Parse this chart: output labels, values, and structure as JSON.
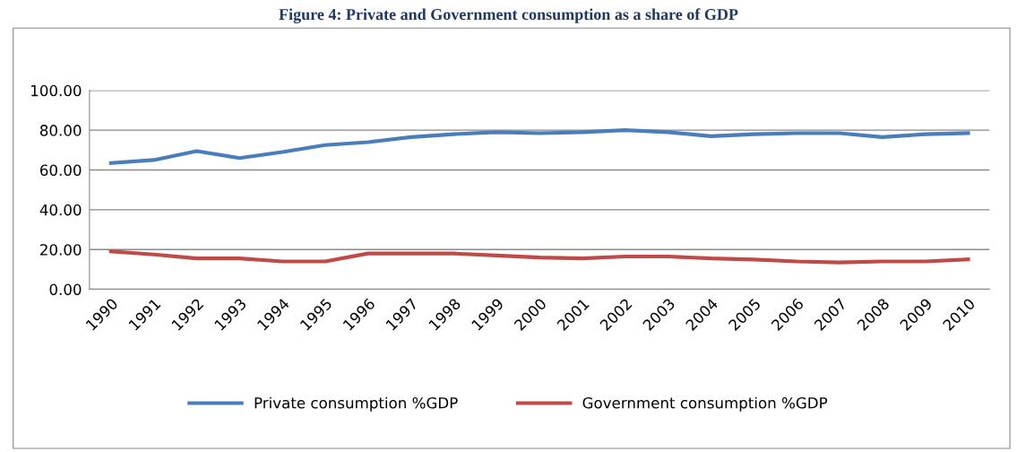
{
  "chart_data": {
    "type": "line",
    "title": "Figure 4: Private and Government consumption as a share of GDP",
    "categories": [
      "1990",
      "1991",
      "1992",
      "1993",
      "1994",
      "1995",
      "1996",
      "1997",
      "1998",
      "1999",
      "2000",
      "2001",
      "2002",
      "2003",
      "2004",
      "2005",
      "2006",
      "2007",
      "2008",
      "2009",
      "2010"
    ],
    "series": [
      {
        "name": "Private consumption %GDP",
        "color": "#4a7ebb",
        "values": [
          63.5,
          65,
          69.5,
          66,
          69,
          72.5,
          74,
          76.5,
          78,
          79,
          78.5,
          79,
          80,
          79,
          77,
          78,
          78.5,
          78.5,
          76.5,
          78,
          78.5
        ]
      },
      {
        "name": "Government consumption %GDP",
        "color": "#be4b48",
        "values": [
          19,
          17.5,
          15.5,
          15.5,
          14,
          14,
          18,
          18,
          18,
          17,
          16,
          15.5,
          16.5,
          16.5,
          15.5,
          15,
          14,
          13.5,
          14,
          14,
          15
        ]
      }
    ],
    "ylim": [
      0,
      100
    ],
    "yticks": [
      {
        "value": 0,
        "label": "0.00"
      },
      {
        "value": 20,
        "label": "20.00"
      },
      {
        "value": 40,
        "label": "40.00"
      },
      {
        "value": 60,
        "label": "60.00"
      },
      {
        "value": 80,
        "label": "80.00"
      },
      {
        "value": 100,
        "label": "100.00"
      }
    ],
    "grid": "y",
    "legend": "bottom",
    "marker": "none",
    "line_style": "solid"
  }
}
